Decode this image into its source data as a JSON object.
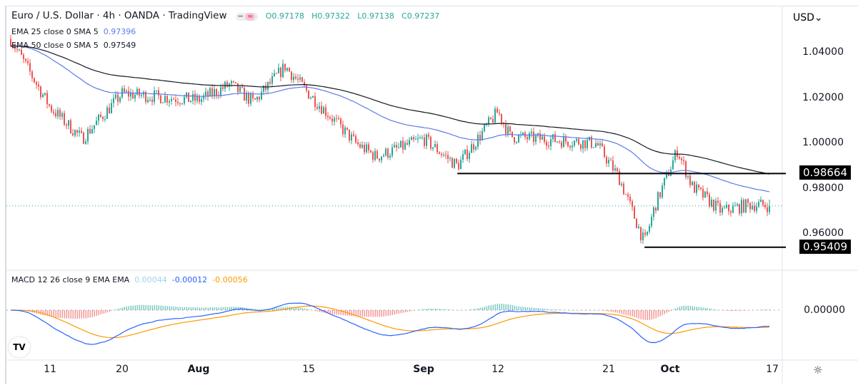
{
  "header": {
    "symbol": "Euro / U.S. Dollar · 4h · OANDA · TradingView",
    "open": "O0.97178",
    "high": "H0.97322",
    "low": "L0.97138",
    "close": "C0.97237"
  },
  "indicators": [
    {
      "label": "EMA 25 close 0 SMA 5",
      "value": "0.97396",
      "color": "#2962ff"
    },
    {
      "label": "EMA 50 close 0 SMA 5",
      "value": "0.97549",
      "color": "#131722"
    }
  ],
  "macd": {
    "label": "MACD 12 26 close 9 EMA EMA",
    "hist": "0.00044",
    "macd": "-0.00012",
    "signal": "-0.00056",
    "colors": {
      "hist": "#9fd4e6",
      "macd": "#2962ff",
      "signal": "#ff9800"
    }
  },
  "currency": "USD",
  "colors": {
    "up": "#26a69a",
    "down": "#ef5350",
    "ema25": "#5b7be8",
    "ema50": "#131722"
  },
  "chart_data": {
    "type": "candlestick",
    "price_ticks": [
      "1.04000",
      "1.02000",
      "1.00000",
      "0.98000",
      "0.96000"
    ],
    "macd_ticks": [
      "0.00000"
    ],
    "time_ticks": [
      {
        "label": "11",
        "bold": false
      },
      {
        "label": "20",
        "bold": false
      },
      {
        "label": "Aug",
        "bold": true
      },
      {
        "label": "15",
        "bold": false
      },
      {
        "label": "Sep",
        "bold": true
      },
      {
        "label": "12",
        "bold": false
      },
      {
        "label": "21",
        "bold": false
      },
      {
        "label": "Oct",
        "bold": true
      },
      {
        "label": "17",
        "bold": false
      }
    ],
    "ylim": [
      0.948,
      1.058
    ],
    "levels": [
      {
        "value": "0.98664",
        "from": "2022-09-06"
      },
      {
        "value": "0.95409",
        "from": "2022-09-28"
      }
    ],
    "current_price": 0.97237,
    "close_path": [
      [
        "2022-07-06",
        1.046
      ],
      [
        "2022-07-11",
        1.016
      ],
      [
        "2022-07-15",
        1.002
      ],
      [
        "2022-07-20",
        1.022
      ],
      [
        "2022-08-01",
        1.019
      ],
      [
        "2022-08-05",
        1.026
      ],
      [
        "2022-08-08",
        1.018
      ],
      [
        "2022-08-12",
        1.034
      ],
      [
        "2022-08-15",
        1.022
      ],
      [
        "2022-08-22",
        1.0
      ],
      [
        "2022-08-25",
        0.994
      ],
      [
        "2022-09-01",
        1.002
      ],
      [
        "2022-09-06",
        0.99
      ],
      [
        "2022-09-12",
        1.014
      ],
      [
        "2022-09-13",
        1.003
      ],
      [
        "2022-09-20",
        1.0
      ],
      [
        "2022-09-23",
        0.985
      ],
      [
        "2022-09-28",
        0.956
      ],
      [
        "2022-09-30",
        0.972
      ],
      [
        "2022-10-04",
        0.997
      ],
      [
        "2022-10-06",
        0.981
      ],
      [
        "2022-10-10",
        0.97
      ],
      [
        "2022-10-14",
        0.973
      ],
      [
        "2022-10-17",
        0.9724
      ]
    ]
  }
}
